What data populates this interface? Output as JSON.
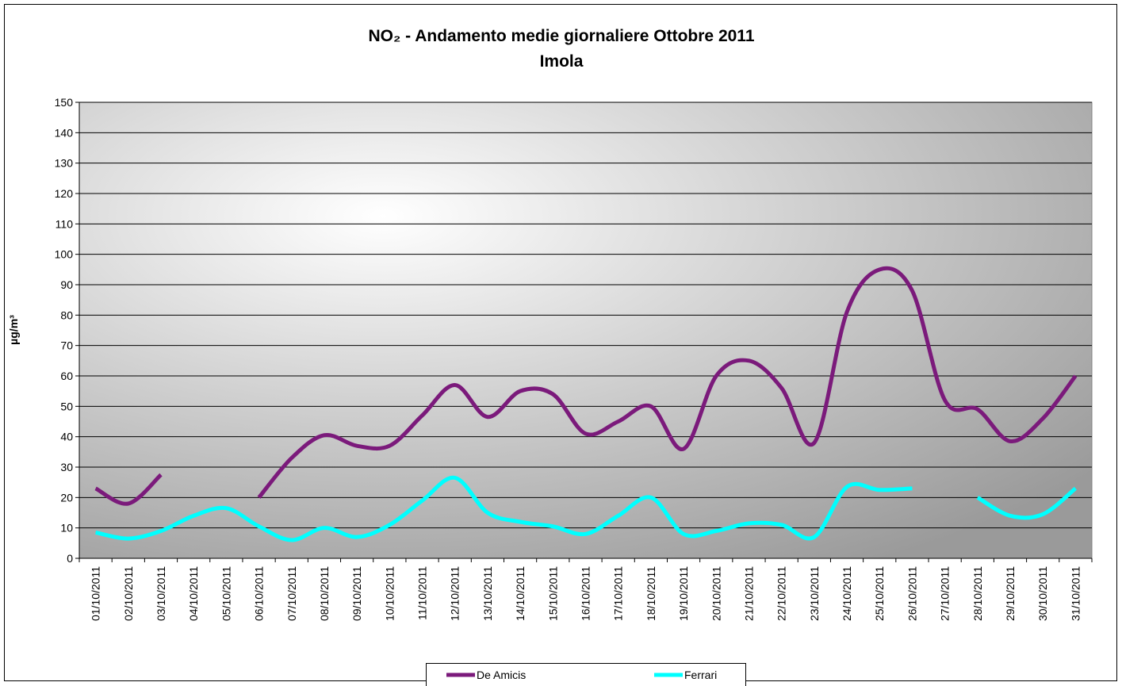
{
  "chart_data": {
    "type": "line",
    "title": "NO₂ - Andamento medie giornaliere Ottobre 2011",
    "subtitle": "Imola",
    "y_label": "µg/m³",
    "categories": [
      "01/10/2011",
      "02/10/2011",
      "03/10/2011",
      "04/10/2011",
      "05/10/2011",
      "06/10/2011",
      "07/10/2011",
      "08/10/2011",
      "09/10/2011",
      "10/10/2011",
      "11/10/2011",
      "12/10/2011",
      "13/10/2011",
      "14/10/2011",
      "15/10/2011",
      "16/10/2011",
      "17/10/2011",
      "18/10/2011",
      "19/10/2011",
      "20/10/2011",
      "21/10/2011",
      "22/10/2011",
      "23/10/2011",
      "24/10/2011",
      "25/10/2011",
      "26/10/2011",
      "27/10/2011",
      "28/10/2011",
      "29/10/2011",
      "30/10/2011",
      "31/10/2011"
    ],
    "series": [
      {
        "name": "De Amicis",
        "color": "#7b1a7b",
        "values": [
          23,
          18,
          27.5,
          null,
          null,
          20,
          33,
          40.5,
          37,
          37,
          47,
          57,
          46.5,
          55,
          54,
          41,
          45,
          50,
          36,
          60,
          65,
          56,
          38,
          81,
          95,
          88,
          52,
          49,
          38.5,
          46,
          60
        ]
      },
      {
        "name": "Ferrari",
        "color": "#00ffff",
        "values": [
          8.5,
          6.5,
          9,
          14,
          16.5,
          10.5,
          6,
          10,
          7,
          11,
          19,
          26.5,
          15,
          12,
          10.5,
          8,
          14,
          20,
          8,
          9,
          11.5,
          11,
          7,
          23.5,
          22.5,
          23,
          null,
          20,
          14,
          14.5,
          23
        ]
      }
    ],
    "ylim": [
      0,
      150
    ],
    "yticks": [
      0,
      10,
      20,
      30,
      40,
      50,
      60,
      70,
      80,
      90,
      100,
      110,
      120,
      130,
      140,
      150
    ],
    "grid": true,
    "legend": "bottom"
  }
}
